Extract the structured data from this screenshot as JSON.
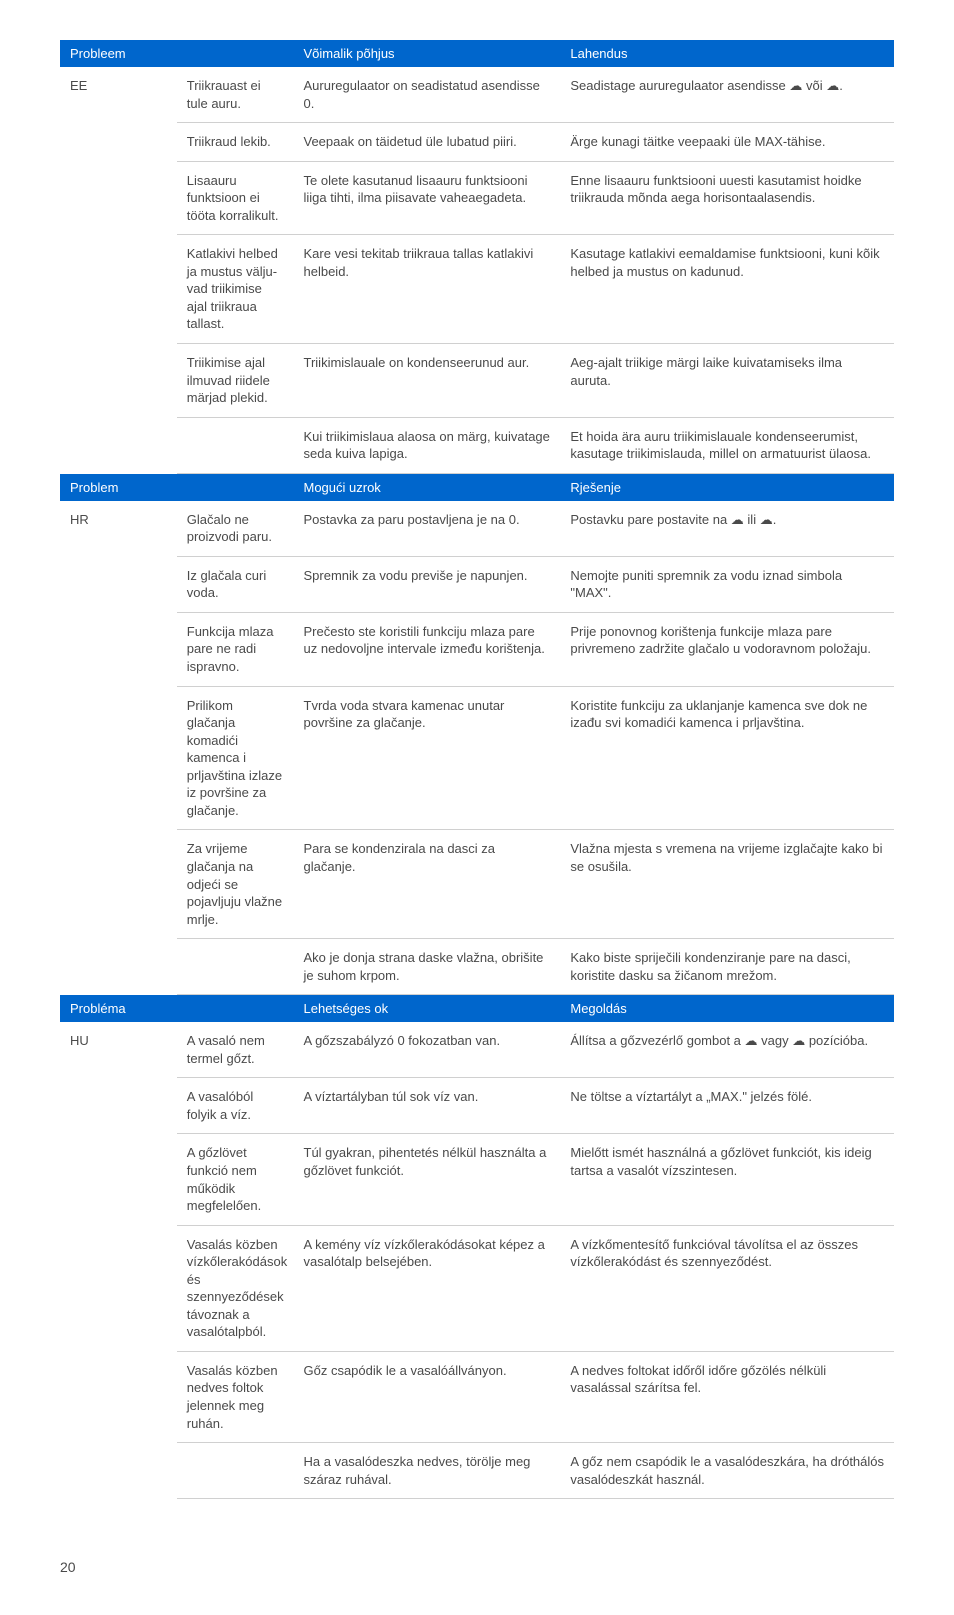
{
  "sections": [
    {
      "country": "EE",
      "headers": [
        "Probleem",
        "Võimalik põhjus",
        "Lahendus"
      ],
      "rows": [
        [
          "Triikrauast ei tule auru.",
          "Aururegulaator on seadistatud asendisse 0.",
          "Seadistage aururegulaator asendisse ☁ või ☁."
        ],
        [
          "Triikraud lekib.",
          "Veepaak on täidetud üle lubatud piiri.",
          "Ärge kunagi täitke veepaaki üle MAX-tähise."
        ],
        [
          "Lisaauru funktsioon ei tööta korralikult.",
          "Te olete kasutanud lisaauru funktsiooni liiga tihti, ilma piisavate vaheaegadeta.",
          "Enne lisaauru funktsiooni uuesti kasutamist hoidke triikrauda mõnda aega horisontaalasendis."
        ],
        [
          "Katlakivi helbed ja mustus välju­vad triikimise ajal triikraua tallast.",
          "Kare vesi tekitab triikraua tallas katlakivi helbeid.",
          "Kasutage katlakivi eemaldamise funktsiooni, kuni kõik helbed ja mustus on kadunud."
        ],
        [
          "Triikimise ajal ilmuvad riidele märjad plekid.",
          "Triikimislauale on kondenseerunud aur.",
          "Aeg-ajalt triikige märgi laike kuivatamiseks ilma auruta."
        ],
        [
          "",
          "Kui triikimislaua alaosa on märg, kuivatage seda kuiva lapiga.",
          "Et hoida ära auru triikimislauale kondenseerumist, kasutage triikimislauda, millel on armatuurist ülaosa."
        ]
      ]
    },
    {
      "country": "HR",
      "headers": [
        "Problem",
        "Mogući uzrok",
        "Rješenje"
      ],
      "rows": [
        [
          "Glačalo ne proizvodi paru.",
          "Postavka za paru postavljena je na 0.",
          "Postavku pare postavite na ☁ ili ☁."
        ],
        [
          "Iz glačala curi voda.",
          "Spremnik za vodu previše je napunjen.",
          "Nemojte puniti spremnik za vodu iznad simbola \"MAX\"."
        ],
        [
          "Funkcija mlaza pare ne radi ispravno.",
          "Prečesto ste koristili funkciju mla­za pare uz nedovoljne intervale između korištenja.",
          "Prije ponovnog korištenja funkcije mlaza pare privremeno zadržite glačalo u vodoravnom položaju."
        ],
        [
          "Prilikom glačanja komadići kamenca i prljavština izlaze iz površine za glačanje.",
          "Tvrda voda stvara kamenac unutar površine za glačanje.",
          "Koristite funkciju za uklanjanje kamenca sve dok ne izađu svi komadići kamenca i prljavština."
        ],
        [
          "Za vrijeme glačanja na odjeći se pojavljuju vlažne mrlje.",
          "Para se kondenzirala na dasci za glačanje.",
          "Vlažna mjesta s vremena na vrijeme izglačajte kako bi se osušila."
        ],
        [
          "",
          "Ako je donja strana daske vlažna, obrišite je suhom krpom.",
          "Kako biste spriječili kondenziranje pare na dasci, koristite dasku sa žičanom mrežom."
        ]
      ]
    },
    {
      "country": "HU",
      "headers": [
        "Probléma",
        "Lehetséges ok",
        "Megoldás"
      ],
      "rows": [
        [
          "A vasaló nem termel gőzt.",
          "A gőzszabályzó 0 fokozatban van.",
          "Állítsa a gőzvezérlő gombot a ☁ vagy ☁ pozícióba."
        ],
        [
          "A vasalóból folyik a víz.",
          "A víztartályban túl sok víz van.",
          "Ne töltse a víztartályt a „MAX.\" jelzés fölé."
        ],
        [
          "A gőzlövet funkció nem működik megfelelően.",
          "Túl gyakran, pihentetés nélkül használta a gőzlövet funkciót.",
          "Mielőtt ismét használná a gőzlövet funkciót, kis ideig tartsa a vasalót vízszintesen."
        ],
        [
          "Vasalás közben vízkőlerakódások és szennyeződések távoznak a vasalótalpból.",
          "A kemény víz vízkőlerakódásokat képez a vasalótalp belsejében.",
          "A vízkőmentesítő funkcióval távolítsa el az összes vízkőlerakódást és szennyeződést."
        ],
        [
          "Vasalás közben nedves foltok jelennek meg ruhán.",
          "Gőz csapódik le a vasalóállványon.",
          "A nedves foltokat időről időre gőzölés nélküli vasalással szárítsa fel."
        ],
        [
          "",
          "Ha a vasalódeszka nedves, törölje meg száraz ruhával.",
          "A gőz nem csapódik le a vasalódeszkára, ha dróthálós vasalódeszkát használ."
        ]
      ]
    }
  ],
  "pageNumber": "20"
}
